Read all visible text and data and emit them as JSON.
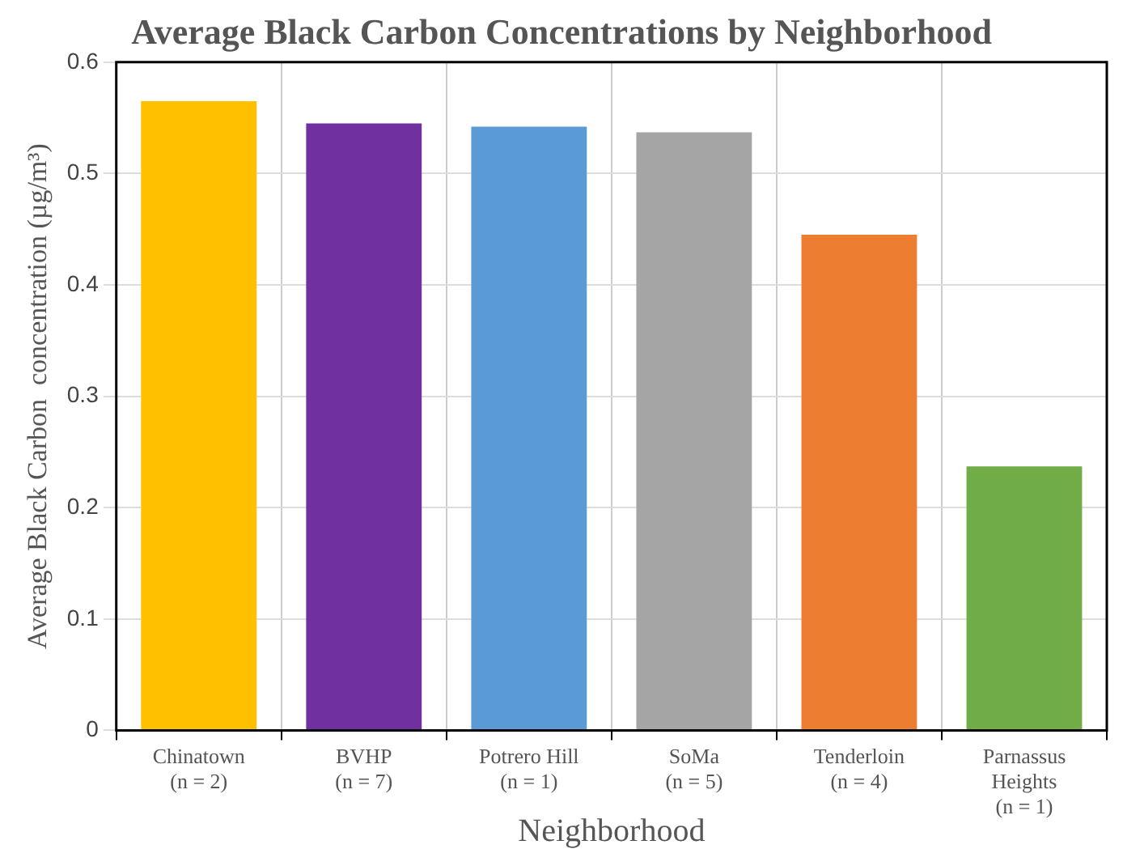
{
  "chart_data": {
    "type": "bar",
    "title": "Average Black Carbon Concentrations by Neighborhood",
    "xlabel": "Neighborhood",
    "ylabel": "Average Black Carbon  concentration (µg/m³)",
    "categories": [
      "Chinatown\n(n = 2)",
      "BVHP\n(n = 7)",
      "Potrero Hill\n(n = 1)",
      "SoMa\n(n = 5)",
      "Tenderloin\n(n = 4)",
      "Parnassus\nHeights\n(n = 1)"
    ],
    "values": [
      0.565,
      0.545,
      0.542,
      0.537,
      0.445,
      0.237
    ],
    "colors": [
      "#ffc000",
      "#7030a0",
      "#5b9bd5",
      "#a5a5a5",
      "#ed7d31",
      "#70ad47"
    ],
    "ylim": [
      0,
      0.6
    ],
    "yticks": [
      0,
      0.1,
      0.2,
      0.3,
      0.4,
      0.5,
      0.6
    ],
    "grid": true,
    "legend": false
  }
}
